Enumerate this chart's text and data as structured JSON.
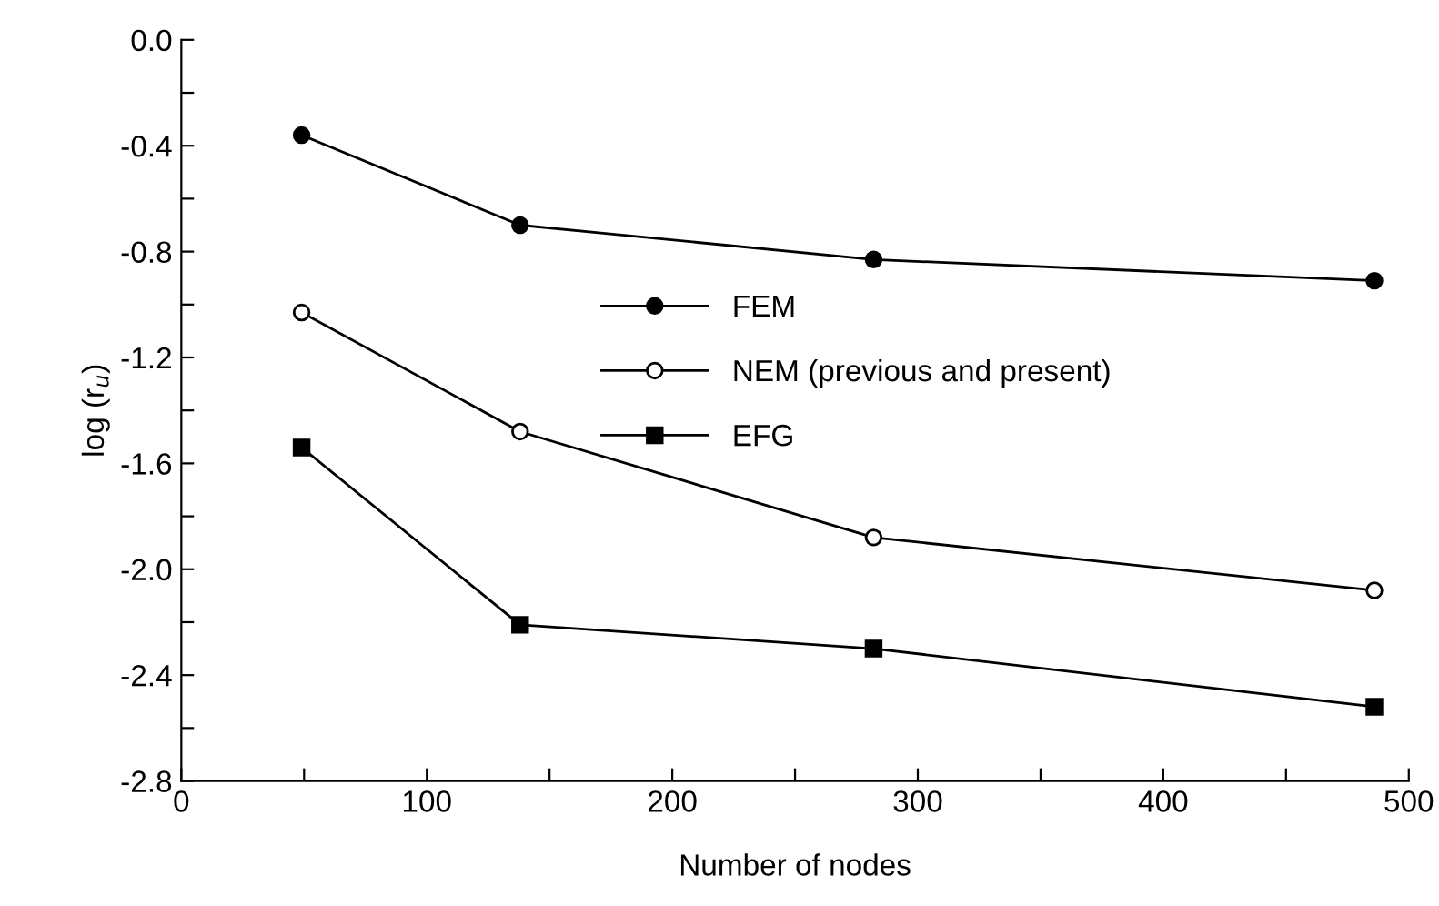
{
  "chart_data": {
    "type": "line",
    "xlabel": "Number of nodes",
    "ylabel": "log (r$_{u}$)",
    "x": [
      49,
      138,
      282,
      486
    ],
    "series": [
      {
        "name": "FEM",
        "color": "#000000",
        "marker": "circle",
        "values": [
          -0.36,
          -0.7,
          -0.83,
          -0.91
        ]
      },
      {
        "name": "NEM (previous and present)",
        "color": "#000000",
        "marker": "open circle",
        "values": [
          -1.03,
          -1.48,
          -1.88,
          -2.08
        ]
      },
      {
        "name": "EFG",
        "color": "#000000",
        "marker": "square",
        "values": [
          -1.54,
          -2.21,
          -2.3,
          -2.52
        ]
      }
    ],
    "xlim": [
      0,
      500
    ],
    "ylim": [
      -2.8,
      0.0
    ],
    "xticks": [
      0,
      {
        "value": 50,
        "label": null
      },
      100,
      {
        "value": 150,
        "label": null
      },
      200,
      {
        "value": 250,
        "label": null
      },
      300,
      {
        "value": 350,
        "label": null
      },
      400,
      {
        "value": 450,
        "label": null
      },
      500
    ],
    "yticks": [
      {
        "value": -2.8,
        "label": "-2.8"
      },
      {
        "value": -2.6,
        "label": null
      },
      {
        "value": -2.4,
        "label": "-2.4"
      },
      {
        "value": -2.2,
        "label": null
      },
      {
        "value": -2.0,
        "label": "-2.0"
      },
      {
        "value": -1.8,
        "label": null
      },
      {
        "value": -1.6,
        "label": "-1.6"
      },
      {
        "value": -1.4,
        "label": null
      },
      {
        "value": -1.2,
        "label": "-1.2"
      },
      {
        "value": -1.0,
        "label": null
      },
      {
        "value": -0.8,
        "label": "-0.8"
      },
      {
        "value": -0.6,
        "label": null
      },
      {
        "value": -0.4,
        "label": "-0.4"
      },
      {
        "value": -0.2,
        "label": null
      },
      {
        "value": 0.0,
        "label": "0.0"
      }
    ],
    "grid": false,
    "legend": "center",
    "line_style": "solid"
  }
}
